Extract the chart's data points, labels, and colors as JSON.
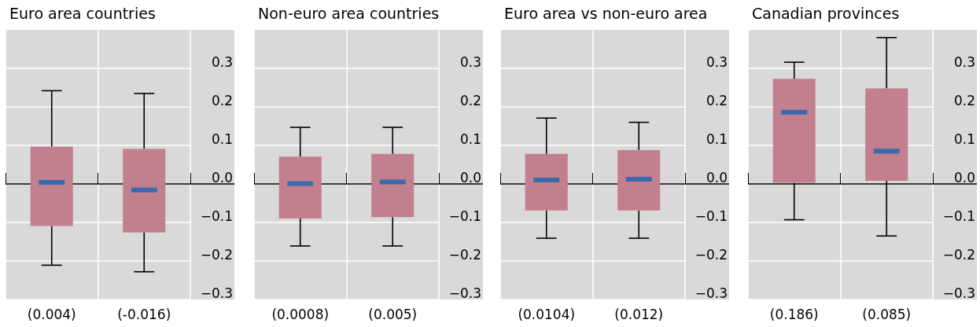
{
  "chart_data": [
    {
      "type": "box",
      "title": "Euro area countries",
      "categories": [
        "(0.004)",
        "(-0.016)"
      ],
      "color": "#c27f8e",
      "ylim": [
        -0.3,
        0.4
      ],
      "yticks": [
        {
          "value": -0.3,
          "label": "−0.3"
        },
        {
          "value": -0.2,
          "label": "−0.2"
        },
        {
          "value": -0.1,
          "label": "−0.1"
        },
        "0.0",
        0.1,
        0.2,
        0.3
      ],
      "grid": true,
      "ref_lines": [
        {
          "axis": "y",
          "value": 0,
          "color": "#000000"
        }
      ],
      "boxes": [
        {
          "low": -0.211,
          "q1": -0.109,
          "median": 0.004,
          "q3": 0.097,
          "high": 0.242
        },
        {
          "low": -0.228,
          "q1": -0.126,
          "median": -0.016,
          "q3": 0.091,
          "high": 0.235
        }
      ]
    },
    {
      "type": "box",
      "title": "Non-euro area countries",
      "categories": [
        "(0.0008)",
        "(0.005)"
      ],
      "color": "#c27f8e",
      "ylim": [
        -0.3,
        0.4
      ],
      "yticks": [
        {
          "value": -0.3,
          "label": "−0.3"
        },
        {
          "value": -0.2,
          "label": "−0.2"
        },
        {
          "value": -0.1,
          "label": "−0.1"
        },
        "0.0",
        0.1,
        0.2,
        0.3
      ],
      "grid": true,
      "ref_lines": [
        {
          "axis": "y",
          "value": 0,
          "color": "#000000"
        }
      ],
      "boxes": [
        {
          "low": -0.161,
          "q1": -0.09,
          "median": 0.0008,
          "q3": 0.071,
          "high": 0.147
        },
        {
          "low": -0.161,
          "q1": -0.086,
          "median": 0.005,
          "q3": 0.078,
          "high": 0.147
        }
      ]
    },
    {
      "type": "box",
      "title": "Euro area vs non-euro area",
      "categories": [
        "(0.0104)",
        "(0.012)"
      ],
      "color": "#c27f8e",
      "ylim": [
        -0.3,
        0.4
      ],
      "yticks": [
        {
          "value": -0.3,
          "label": "−0.3"
        },
        {
          "value": -0.2,
          "label": "−0.2"
        },
        {
          "value": -0.1,
          "label": "−0.1"
        },
        "0.0",
        0.1,
        0.2,
        0.3
      ],
      "grid": true,
      "ref_lines": [
        {
          "axis": "y",
          "value": 0,
          "color": "#000000"
        }
      ],
      "boxes": [
        {
          "low": -0.141,
          "q1": -0.069,
          "median": 0.0104,
          "q3": 0.078,
          "high": 0.171
        },
        {
          "low": -0.141,
          "q1": -0.069,
          "median": 0.012,
          "q3": 0.088,
          "high": 0.16
        }
      ]
    },
    {
      "type": "box",
      "title": "Canadian provinces",
      "categories": [
        "(0.186)",
        "(0.085)"
      ],
      "color": "#c27f8e",
      "ylim": [
        -0.3,
        0.4
      ],
      "yticks": [
        {
          "value": -0.3,
          "label": "−0.3"
        },
        {
          "value": -0.2,
          "label": "−0.2"
        },
        {
          "value": -0.1,
          "label": "−0.1"
        },
        "0.0",
        0.1,
        0.2,
        0.3
      ],
      "grid": true,
      "ref_lines": [
        {
          "axis": "y",
          "value": 0,
          "color": "#000000"
        }
      ],
      "boxes": [
        {
          "low": -0.093,
          "q1": 0.003,
          "median": 0.186,
          "q3": 0.273,
          "high": 0.316
        },
        {
          "low": -0.135,
          "q1": 0.008,
          "median": 0.085,
          "q3": 0.248,
          "high": 0.38
        }
      ]
    }
  ]
}
